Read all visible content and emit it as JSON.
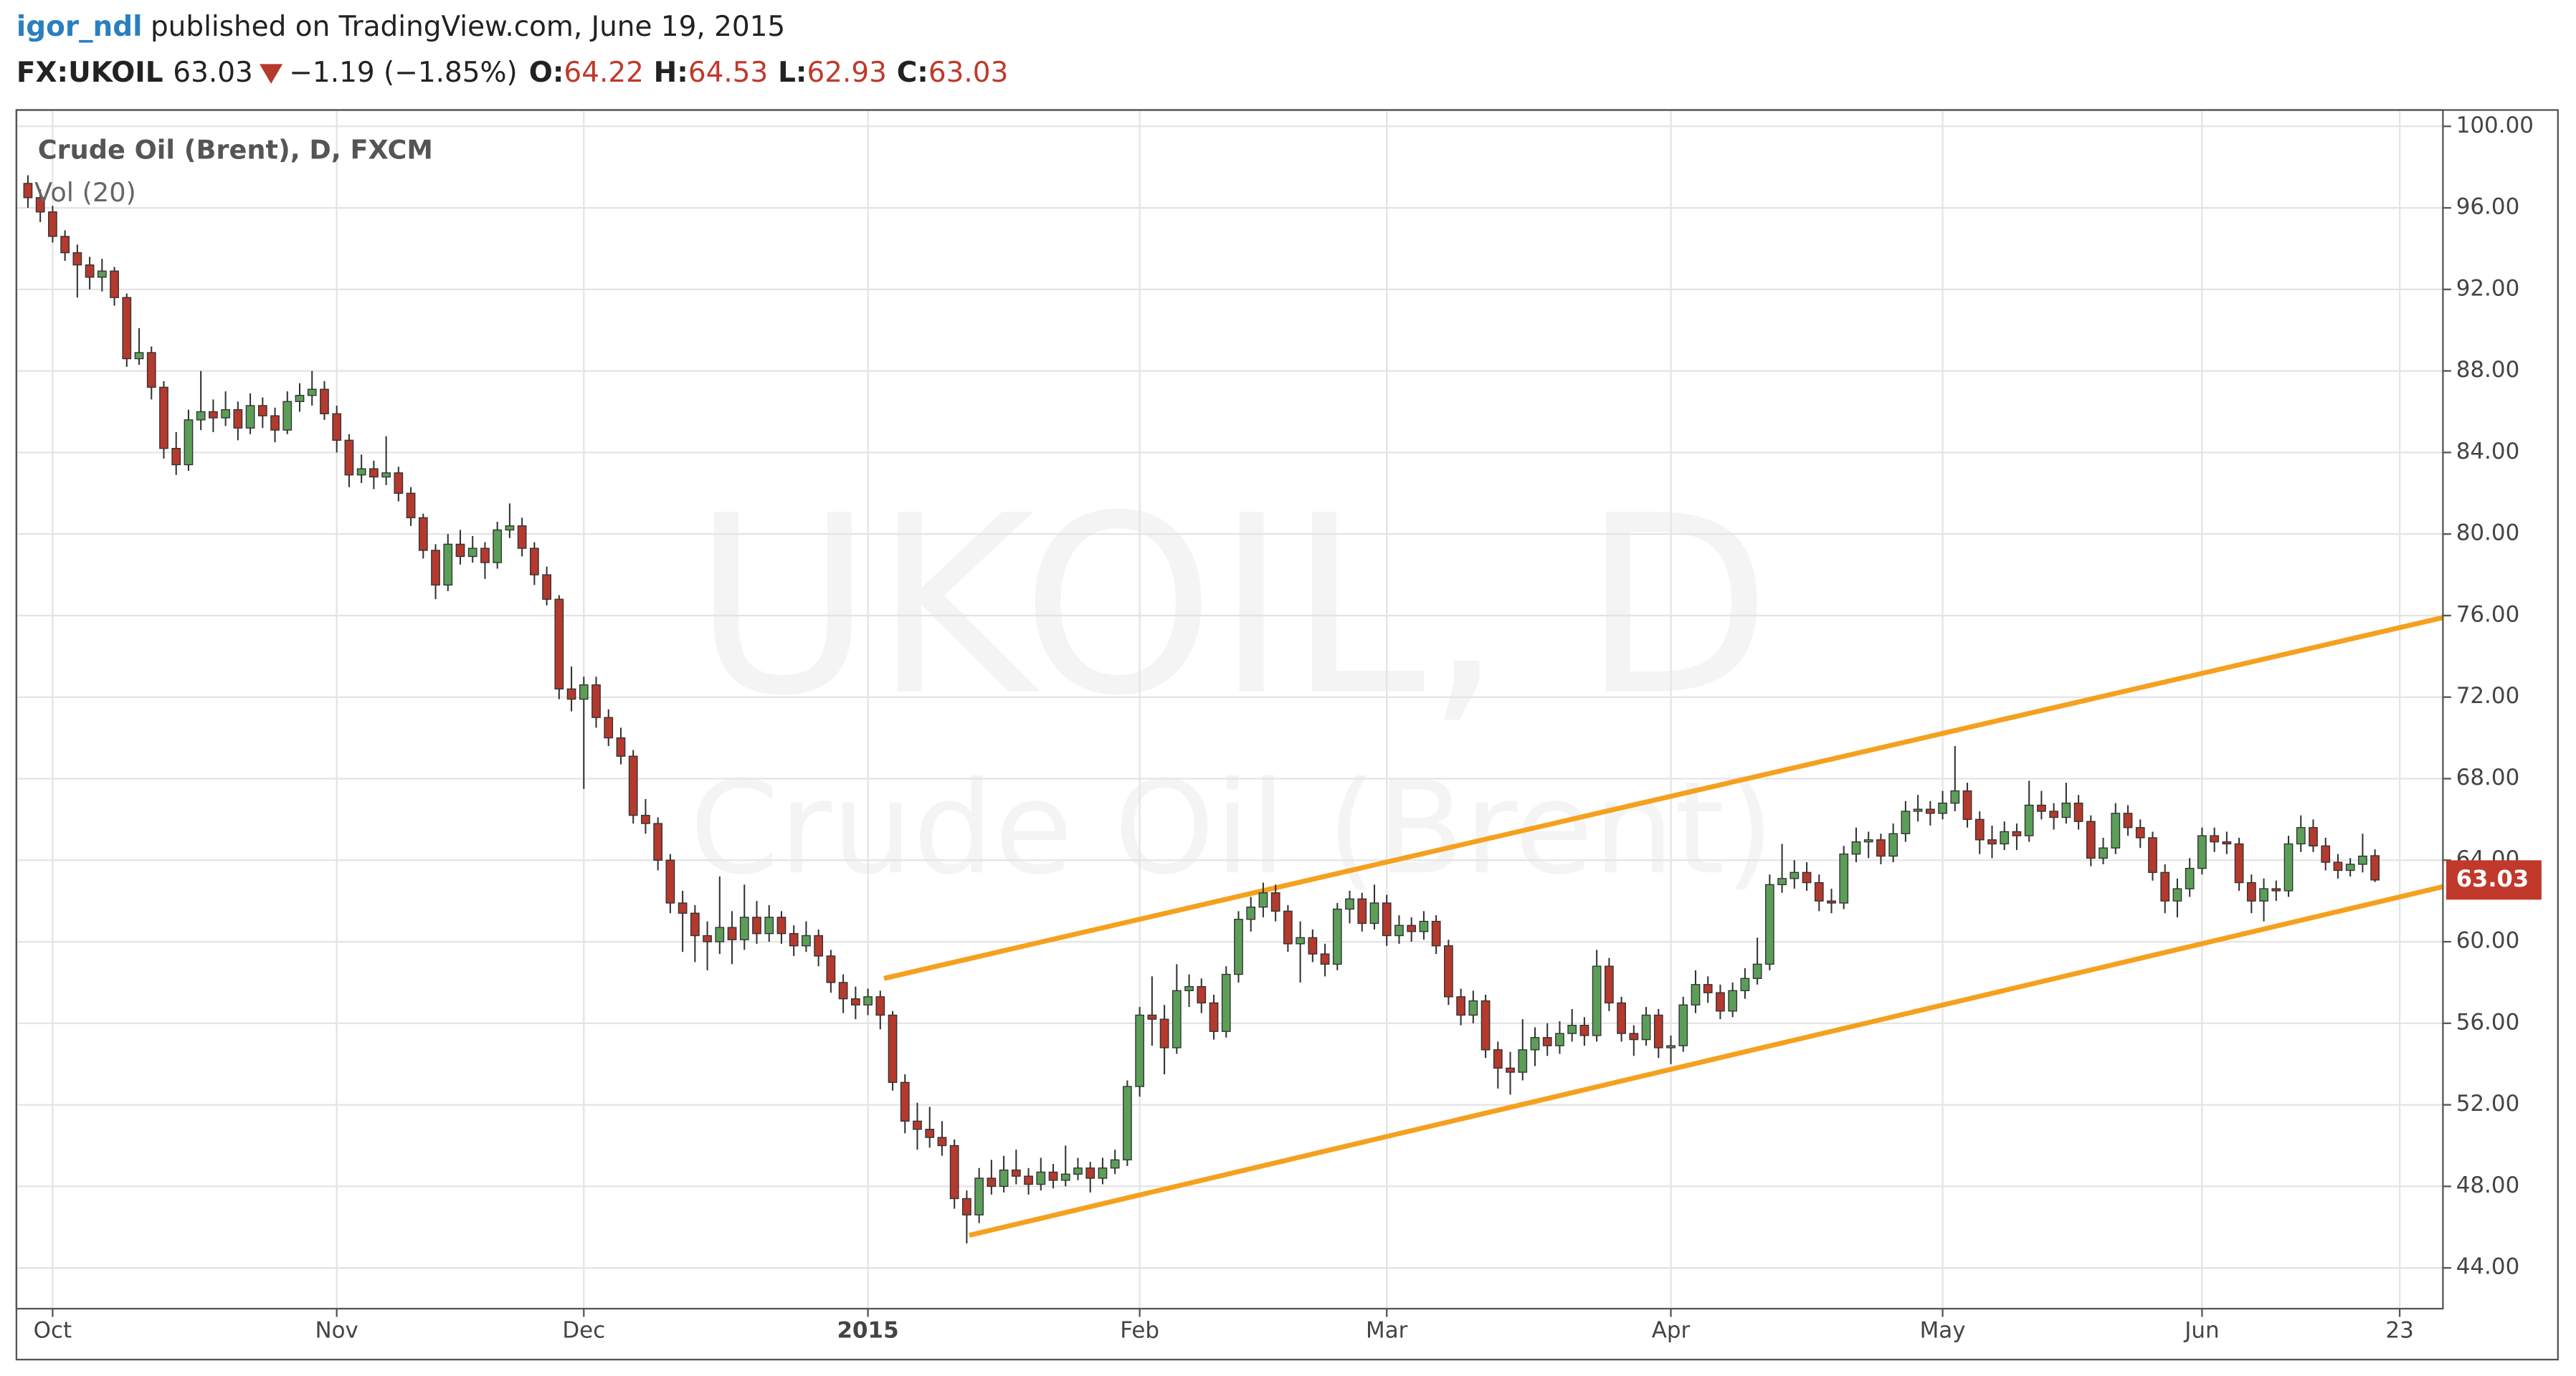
{
  "header": {
    "author": "igor_ndl",
    "published": "published on TradingView.com, June 19, 2015",
    "symbol": "FX:UKOIL",
    "change": "−1.19 (−1.85%)",
    "ohlc_labels": [
      "O:",
      "H:",
      "L:",
      "C:"
    ]
  },
  "chart_data": {
    "type": "candlestick",
    "title": "Crude Oil (Brent), D, FXCM",
    "indicator": "Vol (20)",
    "watermark": [
      "UKOIL, D",
      "Crude Oil (Brent)"
    ],
    "up_color": "#5b9e58",
    "down_color": "#b5392d",
    "trend_color": "#f5a01e",
    "xlim": [
      -0.93,
      195.5
    ],
    "ylim": [
      42,
      100.8
    ],
    "xticks": [
      {
        "value": 2,
        "label": "Oct"
      },
      {
        "value": 25,
        "label": "Nov"
      },
      {
        "value": 45,
        "label": "Dec"
      },
      {
        "value": 68,
        "label": "2015"
      },
      {
        "value": 90,
        "label": "Feb"
      },
      {
        "value": 110,
        "label": "Mar"
      },
      {
        "value": 133,
        "label": "Apr"
      },
      {
        "value": 155,
        "label": "May"
      },
      {
        "value": 176,
        "label": "Jun"
      },
      {
        "value": 192,
        "label": "23"
      }
    ],
    "yticks": [
      {
        "value": 44,
        "label": "44.00"
      },
      {
        "value": 48,
        "label": "48.00"
      },
      {
        "value": 52,
        "label": "52.00"
      },
      {
        "value": 56,
        "label": "56.00"
      },
      {
        "value": 60,
        "label": "60.00"
      },
      {
        "value": 64,
        "label": "64.00"
      },
      {
        "value": 68,
        "label": "68.00"
      },
      {
        "value": 72,
        "label": "72.00"
      },
      {
        "value": 76,
        "label": "76.00"
      },
      {
        "value": 80,
        "label": "80.00"
      },
      {
        "value": 84,
        "label": "84.00"
      },
      {
        "value": 88,
        "label": "88.00"
      },
      {
        "value": 92,
        "label": "92.00"
      },
      {
        "value": 96,
        "label": "96.00"
      },
      {
        "value": 100,
        "label": "100.00"
      }
    ],
    "grid": true,
    "trend_lines": [
      {
        "x": [
          69.3,
          195.5
        ],
        "y": [
          58.2,
          75.9
        ]
      },
      {
        "x": [
          76.2,
          195.5
        ],
        "y": [
          45.6,
          62.7
        ]
      }
    ],
    "candles": [
      [
        97.2,
        97.6,
        96.0,
        96.5
      ],
      [
        96.5,
        96.9,
        95.3,
        95.8
      ],
      [
        95.8,
        96.1,
        94.3,
        94.6
      ],
      [
        94.6,
        94.9,
        93.4,
        93.8
      ],
      [
        93.8,
        94.2,
        91.6,
        93.2
      ],
      [
        93.2,
        93.6,
        92.0,
        92.6
      ],
      [
        92.6,
        93.5,
        91.9,
        92.9
      ],
      [
        92.9,
        93.1,
        91.2,
        91.6
      ],
      [
        91.6,
        91.8,
        88.2,
        88.6
      ],
      [
        88.6,
        90.1,
        88.3,
        88.9
      ],
      [
        88.9,
        89.2,
        86.6,
        87.2
      ],
      [
        87.2,
        87.5,
        83.7,
        84.2
      ],
      [
        84.2,
        85.0,
        82.9,
        83.4
      ],
      [
        83.4,
        86.1,
        83.1,
        85.6
      ],
      [
        85.6,
        88.0,
        85.1,
        86.0
      ],
      [
        86.0,
        86.6,
        85.0,
        85.7
      ],
      [
        85.7,
        87.0,
        85.3,
        86.1
      ],
      [
        86.1,
        86.5,
        84.6,
        85.2
      ],
      [
        85.2,
        86.9,
        84.9,
        86.3
      ],
      [
        86.3,
        86.7,
        85.2,
        85.8
      ],
      [
        85.8,
        86.2,
        84.5,
        85.1
      ],
      [
        85.1,
        87.0,
        84.9,
        86.5
      ],
      [
        86.5,
        87.4,
        86.0,
        86.8
      ],
      [
        86.8,
        88.0,
        86.3,
        87.1
      ],
      [
        87.1,
        87.5,
        85.6,
        85.9
      ],
      [
        85.9,
        86.3,
        84.0,
        84.6
      ],
      [
        84.6,
        84.9,
        82.3,
        82.9
      ],
      [
        82.9,
        83.9,
        82.5,
        83.2
      ],
      [
        83.2,
        83.6,
        82.2,
        82.8
      ],
      [
        82.8,
        84.8,
        82.4,
        83.0
      ],
      [
        83.0,
        83.3,
        81.6,
        82.0
      ],
      [
        82.0,
        82.3,
        80.4,
        80.8
      ],
      [
        80.8,
        81.0,
        78.8,
        79.2
      ],
      [
        79.2,
        79.5,
        76.8,
        77.5
      ],
      [
        77.5,
        80.0,
        77.2,
        79.5
      ],
      [
        79.5,
        80.2,
        78.5,
        78.9
      ],
      [
        78.9,
        79.9,
        78.6,
        79.3
      ],
      [
        79.3,
        79.6,
        77.8,
        78.6
      ],
      [
        78.6,
        80.6,
        78.3,
        80.2
      ],
      [
        80.2,
        81.5,
        79.8,
        80.4
      ],
      [
        80.4,
        80.8,
        78.9,
        79.3
      ],
      [
        79.3,
        79.6,
        77.5,
        78.0
      ],
      [
        78.0,
        78.4,
        76.5,
        76.8
      ],
      [
        76.8,
        77.0,
        71.9,
        72.4
      ],
      [
        72.4,
        73.5,
        71.3,
        71.9
      ],
      [
        71.9,
        73.0,
        67.5,
        72.6
      ],
      [
        72.6,
        73.0,
        70.5,
        71.0
      ],
      [
        71.0,
        71.4,
        69.6,
        70.0
      ],
      [
        70.0,
        70.5,
        68.7,
        69.1
      ],
      [
        69.1,
        69.4,
        65.8,
        66.2
      ],
      [
        66.2,
        67.0,
        65.3,
        65.8
      ],
      [
        65.8,
        66.1,
        63.5,
        64.0
      ],
      [
        64.0,
        64.3,
        61.4,
        61.9
      ],
      [
        61.9,
        62.5,
        59.5,
        61.4
      ],
      [
        61.4,
        61.8,
        59.0,
        60.3
      ],
      [
        60.3,
        61.0,
        58.6,
        60.0
      ],
      [
        60.0,
        63.2,
        59.4,
        60.7
      ],
      [
        60.7,
        61.5,
        58.9,
        60.1
      ],
      [
        60.1,
        62.8,
        59.6,
        61.2
      ],
      [
        61.2,
        62.0,
        59.9,
        60.4
      ],
      [
        60.4,
        61.8,
        60.0,
        61.2
      ],
      [
        61.2,
        61.5,
        59.9,
        60.4
      ],
      [
        60.4,
        60.8,
        59.3,
        59.8
      ],
      [
        59.8,
        61.0,
        59.5,
        60.3
      ],
      [
        60.3,
        60.6,
        58.8,
        59.3
      ],
      [
        59.3,
        59.6,
        57.5,
        58.0
      ],
      [
        58.0,
        58.4,
        56.5,
        57.2
      ],
      [
        57.2,
        57.8,
        56.2,
        56.9
      ],
      [
        56.9,
        57.7,
        56.4,
        57.3
      ],
      [
        57.3,
        57.6,
        55.7,
        56.4
      ],
      [
        56.4,
        56.6,
        52.7,
        53.1
      ],
      [
        53.1,
        53.5,
        50.6,
        51.2
      ],
      [
        51.2,
        52.1,
        49.8,
        50.8
      ],
      [
        50.8,
        51.9,
        49.9,
        50.4
      ],
      [
        50.4,
        51.2,
        49.5,
        50.0
      ],
      [
        50.0,
        50.3,
        46.9,
        47.4
      ],
      [
        47.4,
        47.8,
        45.2,
        46.6
      ],
      [
        46.6,
        48.9,
        46.2,
        48.4
      ],
      [
        48.4,
        49.3,
        47.6,
        48.0
      ],
      [
        48.0,
        49.5,
        47.7,
        48.8
      ],
      [
        48.8,
        49.8,
        48.1,
        48.5
      ],
      [
        48.5,
        48.9,
        47.6,
        48.1
      ],
      [
        48.1,
        49.4,
        47.8,
        48.7
      ],
      [
        48.7,
        49.1,
        47.9,
        48.3
      ],
      [
        48.3,
        50.0,
        48.0,
        48.6
      ],
      [
        48.6,
        49.4,
        48.3,
        48.9
      ],
      [
        48.9,
        49.2,
        47.7,
        48.4
      ],
      [
        48.4,
        49.4,
        48.1,
        48.9
      ],
      [
        48.9,
        49.8,
        48.6,
        49.3
      ],
      [
        49.3,
        53.2,
        49.0,
        52.9
      ],
      [
        52.9,
        56.8,
        52.4,
        56.4
      ],
      [
        56.4,
        58.3,
        54.9,
        56.2
      ],
      [
        56.2,
        56.9,
        53.5,
        54.8
      ],
      [
        54.8,
        58.9,
        54.5,
        57.6
      ],
      [
        57.6,
        58.4,
        56.8,
        57.8
      ],
      [
        57.8,
        58.2,
        56.5,
        57.0
      ],
      [
        57.0,
        57.4,
        55.2,
        55.6
      ],
      [
        55.6,
        58.8,
        55.3,
        58.4
      ],
      [
        58.4,
        61.5,
        58.0,
        61.1
      ],
      [
        61.1,
        62.2,
        60.5,
        61.7
      ],
      [
        61.7,
        62.9,
        61.2,
        62.4
      ],
      [
        62.4,
        62.8,
        61.0,
        61.5
      ],
      [
        61.5,
        61.8,
        59.5,
        59.9
      ],
      [
        59.9,
        61.0,
        58.0,
        60.2
      ],
      [
        60.2,
        60.6,
        59.0,
        59.4
      ],
      [
        59.4,
        59.9,
        58.3,
        58.9
      ],
      [
        58.9,
        61.9,
        58.6,
        61.6
      ],
      [
        61.6,
        62.5,
        60.9,
        62.1
      ],
      [
        62.1,
        62.4,
        60.5,
        60.9
      ],
      [
        60.9,
        62.8,
        60.6,
        61.9
      ],
      [
        61.9,
        62.3,
        59.8,
        60.3
      ],
      [
        60.3,
        61.3,
        59.9,
        60.8
      ],
      [
        60.8,
        61.2,
        60.0,
        60.5
      ],
      [
        60.5,
        61.5,
        60.1,
        61.0
      ],
      [
        61.0,
        61.3,
        59.4,
        59.8
      ],
      [
        59.8,
        60.1,
        56.9,
        57.3
      ],
      [
        57.3,
        57.7,
        55.9,
        56.4
      ],
      [
        56.4,
        57.6,
        56.0,
        57.1
      ],
      [
        57.1,
        57.4,
        54.3,
        54.7
      ],
      [
        54.7,
        55.1,
        52.8,
        53.8
      ],
      [
        53.8,
        54.6,
        52.5,
        53.6
      ],
      [
        53.6,
        56.2,
        53.2,
        54.7
      ],
      [
        54.7,
        55.8,
        53.9,
        55.3
      ],
      [
        55.3,
        56.0,
        54.4,
        54.9
      ],
      [
        54.9,
        56.1,
        54.5,
        55.5
      ],
      [
        55.5,
        56.7,
        55.1,
        55.9
      ],
      [
        55.9,
        56.3,
        54.9,
        55.4
      ],
      [
        55.4,
        59.6,
        55.1,
        58.8
      ],
      [
        58.8,
        59.2,
        56.6,
        57.0
      ],
      [
        57.0,
        57.3,
        55.1,
        55.5
      ],
      [
        55.5,
        55.9,
        54.4,
        55.2
      ],
      [
        55.2,
        56.8,
        54.9,
        56.4
      ],
      [
        56.4,
        56.7,
        54.3,
        54.8
      ],
      [
        54.8,
        55.4,
        54.0,
        54.9
      ],
      [
        54.9,
        57.3,
        54.6,
        56.9
      ],
      [
        56.9,
        58.6,
        56.5,
        57.9
      ],
      [
        57.9,
        58.3,
        57.0,
        57.5
      ],
      [
        57.5,
        57.9,
        56.2,
        56.6
      ],
      [
        56.6,
        58.0,
        56.3,
        57.6
      ],
      [
        57.6,
        58.7,
        57.2,
        58.2
      ],
      [
        58.2,
        60.2,
        57.9,
        58.9
      ],
      [
        58.9,
        63.3,
        58.6,
        62.8
      ],
      [
        62.8,
        64.8,
        62.4,
        63.1
      ],
      [
        63.1,
        64.0,
        62.6,
        63.4
      ],
      [
        63.4,
        63.9,
        62.5,
        62.9
      ],
      [
        62.9,
        63.3,
        61.5,
        62.0
      ],
      [
        62.0,
        62.6,
        61.4,
        61.9
      ],
      [
        61.9,
        64.7,
        61.6,
        64.3
      ],
      [
        64.3,
        65.6,
        63.9,
        64.9
      ],
      [
        64.9,
        65.4,
        64.1,
        65.0
      ],
      [
        65.0,
        65.3,
        63.8,
        64.2
      ],
      [
        64.2,
        65.8,
        63.9,
        65.3
      ],
      [
        65.3,
        66.9,
        64.9,
        66.4
      ],
      [
        66.4,
        67.2,
        65.9,
        66.5
      ],
      [
        66.5,
        66.9,
        65.7,
        66.3
      ],
      [
        66.3,
        67.4,
        66.0,
        66.8
      ],
      [
        66.8,
        69.6,
        66.4,
        67.4
      ],
      [
        67.4,
        67.8,
        65.6,
        66.0
      ],
      [
        66.0,
        66.4,
        64.3,
        65.0
      ],
      [
        65.0,
        65.7,
        64.1,
        64.8
      ],
      [
        64.8,
        65.9,
        64.5,
        65.4
      ],
      [
        65.4,
        65.8,
        64.5,
        65.2
      ],
      [
        65.2,
        67.9,
        64.9,
        66.7
      ],
      [
        66.7,
        67.4,
        66.0,
        66.4
      ],
      [
        66.4,
        66.8,
        65.5,
        66.1
      ],
      [
        66.1,
        67.8,
        65.8,
        66.8
      ],
      [
        66.8,
        67.2,
        65.5,
        65.9
      ],
      [
        65.9,
        66.2,
        63.7,
        64.1
      ],
      [
        64.1,
        65.1,
        63.8,
        64.6
      ],
      [
        64.6,
        66.8,
        64.3,
        66.3
      ],
      [
        66.3,
        66.7,
        65.2,
        65.6
      ],
      [
        65.6,
        66.0,
        64.6,
        65.1
      ],
      [
        65.1,
        65.4,
        63.0,
        63.4
      ],
      [
        63.4,
        63.8,
        61.4,
        62.0
      ],
      [
        62.0,
        63.1,
        61.2,
        62.6
      ],
      [
        62.6,
        64.1,
        62.2,
        63.6
      ],
      [
        63.6,
        65.6,
        63.3,
        65.2
      ],
      [
        65.2,
        65.6,
        64.4,
        64.9
      ],
      [
        64.9,
        65.4,
        64.3,
        64.8
      ],
      [
        64.8,
        65.1,
        62.5,
        62.9
      ],
      [
        62.9,
        63.3,
        61.4,
        62.0
      ],
      [
        62.0,
        63.1,
        61.0,
        62.6
      ],
      [
        62.6,
        63.0,
        62.0,
        62.5
      ],
      [
        62.5,
        65.2,
        62.2,
        64.8
      ],
      [
        64.8,
        66.2,
        64.4,
        65.6
      ],
      [
        65.6,
        66.0,
        64.4,
        64.7
      ],
      [
        64.7,
        65.1,
        63.5,
        63.9
      ],
      [
        63.9,
        64.3,
        63.1,
        63.5
      ],
      [
        63.5,
        64.1,
        63.2,
        63.8
      ],
      [
        63.8,
        65.3,
        63.4,
        64.2
      ],
      [
        64.22,
        64.53,
        62.93,
        63.03
      ]
    ]
  }
}
